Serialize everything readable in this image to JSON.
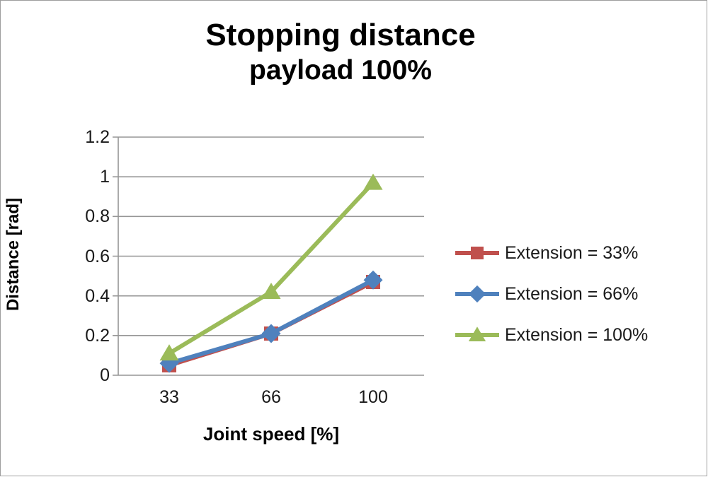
{
  "chart_data": {
    "type": "line",
    "title": "Stopping distance",
    "subtitle": "payload 100%",
    "xlabel": "Joint speed [%]",
    "ylabel": "Distance [rad]",
    "categories": [
      "33",
      "66",
      "100"
    ],
    "yticks": [
      0,
      0.2,
      0.4,
      0.6,
      0.8,
      1,
      1.2
    ],
    "ytick_labels": [
      "0",
      "0.2",
      "0.4",
      "0.6",
      "0.8",
      "1",
      "1.2"
    ],
    "ylim": [
      0,
      1.2
    ],
    "grid": true,
    "legend_position": "right",
    "grid_color": "#969696",
    "axis_color": "#969696",
    "text_color": "#1a1a1a",
    "series": [
      {
        "name": "Extension = 33%",
        "marker": "square",
        "color": "#C0504D",
        "values": [
          0.05,
          0.21,
          0.47
        ]
      },
      {
        "name": "Extension = 66%",
        "marker": "diamond",
        "color": "#4F81BD",
        "values": [
          0.06,
          0.21,
          0.48
        ]
      },
      {
        "name": "Extension = 100%",
        "marker": "triangle",
        "color": "#9BBB59",
        "values": [
          0.11,
          0.42,
          0.97
        ]
      }
    ]
  }
}
